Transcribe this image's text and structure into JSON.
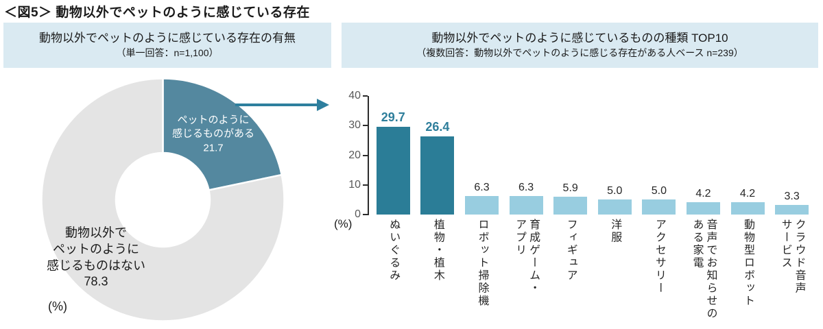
{
  "title": "＜図5＞ 動物以外でペットのように感じている存在",
  "panels": {
    "left": {
      "header": "動物以外でペットのように感じている存在の有無",
      "subheader": "（単一回答：n=1,100）"
    },
    "right": {
      "header": "動物以外でペットのように感じているものの種類 TOP10",
      "subheader": "（複数回答：動物以外でペットのように感じる存在がある人ベース n=239）"
    }
  },
  "colors": {
    "header_bg": "#DAEAF2",
    "arrow": "#2E7F9E",
    "axis": "#2B2B2B",
    "tick_label": "#595959"
  },
  "chart_data": [
    {
      "type": "pie",
      "donut": true,
      "unit_label": "(%)",
      "start_angle": "top",
      "direction": "clockwise",
      "slices": [
        {
          "label": "ペットのように\n感じるものがある",
          "value": 21.7,
          "color": "#54889F",
          "label_color": "#FFFFFF"
        },
        {
          "label": "動物以外で\nペットのように\n感じるものはない",
          "value": 78.3,
          "color": "#E4E4E4",
          "label_color": "#1A1A1A"
        }
      ]
    },
    {
      "type": "bar",
      "unit_label": "(%)",
      "ylim": [
        0,
        40
      ],
      "yticks": [
        0,
        10,
        20,
        30,
        40
      ],
      "categories": [
        "ぬいぐるみ",
        "植物・植木",
        "ロボット掃除機",
        "育成ゲーム・\nアプリ",
        "フィギュア",
        "洋服",
        "アクセサリー",
        "音声でお知らせの\nある家電",
        "動物型ロボット",
        "クラウド音声\nサービス"
      ],
      "values": [
        29.7,
        26.4,
        6.3,
        6.3,
        5.9,
        5.0,
        5.0,
        4.2,
        4.2,
        3.3
      ],
      "highlight_count": 2,
      "colors": {
        "bar": "#98CDE0",
        "highlight": "#2B7D97",
        "value_label": "#262626",
        "highlight_value_label": "#2E7E9B"
      }
    }
  ]
}
